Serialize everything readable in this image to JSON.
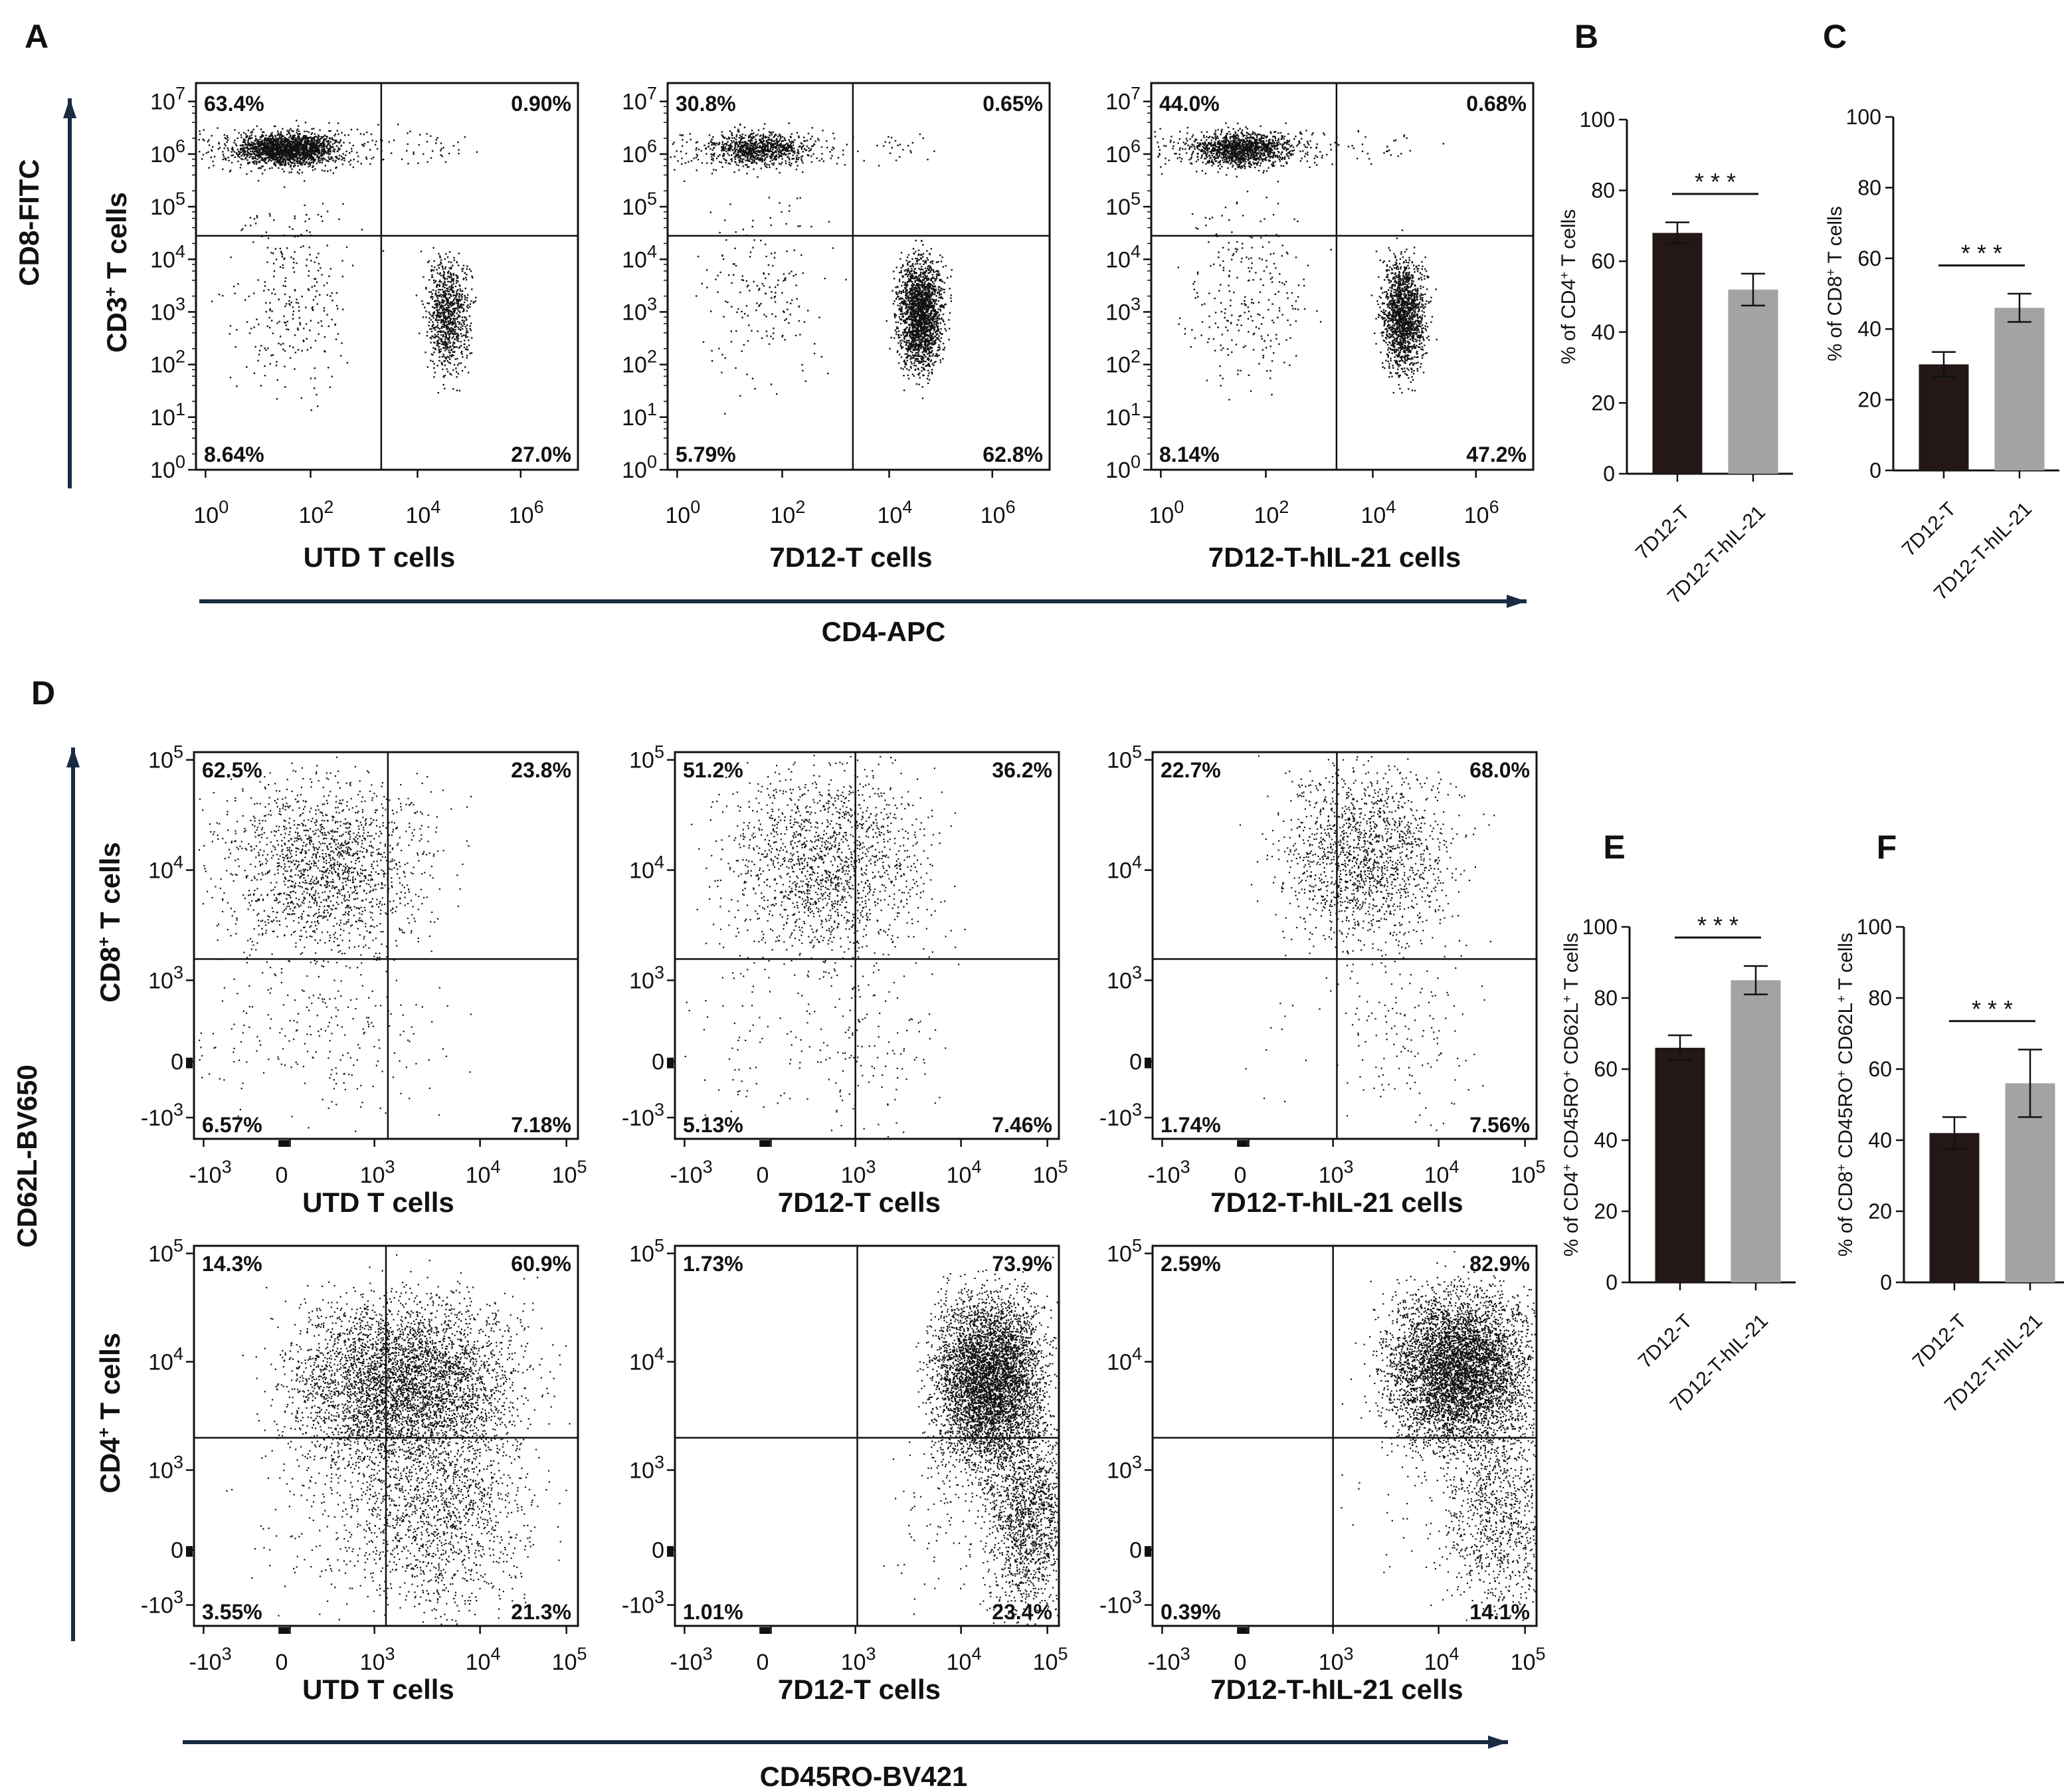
{
  "chart_data": {
    "panel_labels": {
      "A": "A",
      "B": "B",
      "C": "C",
      "D": "D",
      "E": "E",
      "F": "F"
    },
    "row_a": {
      "type": "scatter",
      "y_title": "CD8-FITC",
      "x_title": "CD4-APC",
      "y_label": {
        "base": "CD3",
        "sup": "+",
        "rest": " T cells"
      },
      "y_ticks": [
        {
          "base": "10",
          "exp": "0"
        },
        {
          "base": "10",
          "exp": "1"
        },
        {
          "base": "10",
          "exp": "2"
        },
        {
          "base": "10",
          "exp": "3"
        },
        {
          "base": "10",
          "exp": "4"
        },
        {
          "base": "10",
          "exp": "5"
        },
        {
          "base": "10",
          "exp": "6"
        },
        {
          "base": "10",
          "exp": "7"
        }
      ],
      "x_ticks": [
        {
          "base": "10",
          "exp": "0"
        },
        {
          "base": "10",
          "exp": "2"
        },
        {
          "base": "10",
          "exp": "4"
        },
        {
          "base": "10",
          "exp": "6"
        }
      ],
      "plots": [
        {
          "name": "UTD T cells",
          "quadrants": {
            "ul": "63.4%",
            "ur": "0.90%",
            "ll": "8.64%",
            "lr": "27.0%"
          }
        },
        {
          "name": "7D12-T cells",
          "quadrants": {
            "ul": "30.8%",
            "ur": "0.65%",
            "ll": "5.79%",
            "lr": "62.8%"
          }
        },
        {
          "name": "7D12-T-hIL-21  cells",
          "quadrants": {
            "ul": "44.0%",
            "ur": "0.68%",
            "ll": "8.14%",
            "lr": "47.2%"
          }
        }
      ]
    },
    "row_d": {
      "type": "scatter",
      "y_title": "CD62L-BV650",
      "x_title": "CD45RO-BV421",
      "y_ticks": [
        {
          "base": "-10",
          "exp": "3"
        },
        {
          "base": "0",
          "exp": ""
        },
        {
          "base": "10",
          "exp": "3"
        },
        {
          "base": "10",
          "exp": "4"
        },
        {
          "base": "10",
          "exp": "5"
        }
      ],
      "x_ticks": [
        {
          "base": "-10",
          "exp": "3"
        },
        {
          "base": "0",
          "exp": ""
        },
        {
          "base": "10",
          "exp": "3"
        },
        {
          "base": "10",
          "exp": "4"
        },
        {
          "base": "10",
          "exp": "5"
        }
      ],
      "rows": [
        {
          "y_label": {
            "base": "CD8",
            "sup": "+",
            "rest": " T cells"
          },
          "plots": [
            {
              "name": "UTD T cells",
              "quadrants": {
                "ul": "62.5%",
                "ur": "23.8%",
                "ll": "6.57%",
                "lr": "7.18%"
              }
            },
            {
              "name": "7D12-T cells",
              "quadrants": {
                "ul": "51.2%",
                "ur": "36.2%",
                "ll": "5.13%",
                "lr": "7.46%"
              }
            },
            {
              "name": "7D12-T-hIL-21  cells",
              "quadrants": {
                "ul": "22.7%",
                "ur": "68.0%",
                "ll": "1.74%",
                "lr": "7.56%"
              }
            }
          ]
        },
        {
          "y_label": {
            "base": "CD4",
            "sup": "+",
            "rest": " T cells"
          },
          "plots": [
            {
              "name": "UTD T cells",
              "quadrants": {
                "ul": "14.3%",
                "ur": "60.9%",
                "ll": "3.55%",
                "lr": "21.3%"
              }
            },
            {
              "name": "7D12-T cells",
              "quadrants": {
                "ul": "1.73%",
                "ur": "73.9%",
                "ll": "1.01%",
                "lr": "23.4%"
              }
            },
            {
              "name": "7D12-T-hIL-21  cells",
              "quadrants": {
                "ul": "2.59%",
                "ur": "82.9%",
                "ll": "0.39%",
                "lr": "14.1%"
              }
            }
          ]
        }
      ]
    },
    "bar_charts": [
      {
        "panel": "B",
        "type": "bar",
        "ylabel_parts": [
          "% of CD4",
          "+",
          " T cells"
        ],
        "ylim": [
          0,
          100
        ],
        "y_ticks": [
          "0",
          "20",
          "40",
          "60",
          "80",
          "100"
        ],
        "categories": [
          "7D12-T",
          "7D12-T-hIL-21"
        ],
        "values": [
          68,
          52
        ],
        "errors": [
          3,
          4.5
        ],
        "significance": "* * *",
        "colors": [
          "#231815",
          "#a3a3a3"
        ]
      },
      {
        "panel": "C",
        "type": "bar",
        "ylabel_parts": [
          "% of CD8",
          "+",
          " T cells"
        ],
        "ylim": [
          0,
          100
        ],
        "y_ticks": [
          "0",
          "20",
          "40",
          "60",
          "80",
          "100"
        ],
        "categories": [
          "7D12-T",
          "7D12-T-hIL-21"
        ],
        "values": [
          30,
          46
        ],
        "errors": [
          3.5,
          4
        ],
        "significance": "* * *",
        "colors": [
          "#231815",
          "#a3a3a3"
        ]
      },
      {
        "panel": "E",
        "type": "bar",
        "ylabel_parts": [
          "% of CD4",
          "+",
          " CD45RO",
          "+",
          " CD62L",
          "+",
          " T cells"
        ],
        "ylim": [
          0,
          100
        ],
        "y_ticks": [
          "0",
          "20",
          "40",
          "60",
          "80",
          "100"
        ],
        "categories": [
          "7D12-T",
          "7D12-T-hIL-21"
        ],
        "values": [
          66,
          85
        ],
        "errors": [
          3.5,
          4
        ],
        "significance": "* * *",
        "colors": [
          "#231815",
          "#a3a3a3"
        ]
      },
      {
        "panel": "F",
        "type": "bar",
        "ylabel_parts": [
          "% of CD8",
          "+",
          " CD45RO",
          "+",
          " CD62L",
          "+",
          " T cells"
        ],
        "ylim": [
          0,
          100
        ],
        "y_ticks": [
          "0",
          "20",
          "40",
          "60",
          "80",
          "100"
        ],
        "categories": [
          "7D12-T",
          "7D12-T-hIL-21"
        ],
        "values": [
          42,
          56
        ],
        "errors": [
          4.5,
          9.5
        ],
        "significance": "* * *",
        "colors": [
          "#231815",
          "#a3a3a3"
        ]
      }
    ]
  }
}
